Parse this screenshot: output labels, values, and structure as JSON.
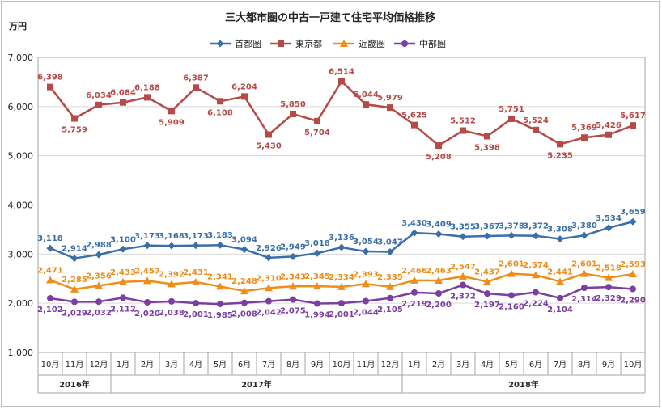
{
  "chart_data": {
    "type": "line",
    "title": "三大都市圏の中古一戸建て住宅平均価格推移",
    "ylabel": "万円",
    "xlabel": "",
    "ylim": [
      1000,
      7000
    ],
    "yticks": [
      "1,000",
      "2,000",
      "3,000",
      "4,000",
      "5,000",
      "6,000",
      "7,000"
    ],
    "categories": [
      "10月",
      "11月",
      "12月",
      "1月",
      "2月",
      "3月",
      "4月",
      "5月",
      "6月",
      "7月",
      "8月",
      "9月",
      "10月",
      "11月",
      "12月",
      "1月",
      "2月",
      "3月",
      "4月",
      "5月",
      "6月",
      "7月",
      "8月",
      "9月",
      "10月"
    ],
    "year_groups": [
      {
        "label": "2016年",
        "start": 0,
        "end": 2
      },
      {
        "label": "2017年",
        "start": 3,
        "end": 14
      },
      {
        "label": "2018年",
        "start": 15,
        "end": 24
      }
    ],
    "legend_position": "top",
    "series": [
      {
        "name": "首都圏",
        "color": "#3a6fa8",
        "marker": "diamond",
        "label_pos": "above",
        "values": [
          3118,
          2914,
          2988,
          3100,
          3173,
          3168,
          3173,
          3183,
          3094,
          2926,
          2949,
          3018,
          3136,
          3054,
          3047,
          3430,
          3409,
          3355,
          3367,
          3378,
          3372,
          3308,
          3380,
          3534,
          3659
        ],
        "labels": [
          "3,118",
          "2,914",
          "2,988",
          "3,100",
          "3,173",
          "3,168",
          "3,173",
          "3,183",
          "3,094",
          "2,926",
          "2,949",
          "3,018",
          "3,136",
          "3,054",
          "3,047",
          "3,430",
          "3,409",
          "3,355",
          "3,367",
          "3,378",
          "3,372",
          "3,308",
          "3,380",
          "3,534",
          "3,659"
        ]
      },
      {
        "name": "東京都",
        "color": "#b54a47",
        "marker": "square",
        "label_pos": "mixed",
        "values": [
          6398,
          5759,
          6034,
          6084,
          6188,
          5909,
          6387,
          6108,
          6204,
          5430,
          5850,
          5704,
          6514,
          6044,
          5979,
          5625,
          5208,
          5512,
          5398,
          5751,
          5524,
          5235,
          5369,
          5426,
          5617
        ],
        "labels": [
          "6,398",
          "5,759",
          "6,034",
          "6,084",
          "6,188",
          "5,909",
          "6,387",
          "6,108",
          "6,204",
          "5,430",
          "5,850",
          "5,704",
          "6,514",
          "6,044",
          "5,979",
          "5,625",
          "5,208",
          "5,512",
          "5,398",
          "5,751",
          "5,524",
          "5,235",
          "5,369",
          "5,426",
          "5,617"
        ]
      },
      {
        "name": "近畿圏",
        "color": "#ee8d1a",
        "marker": "triangle",
        "label_pos": "above",
        "values": [
          2471,
          2285,
          2356,
          2433,
          2457,
          2392,
          2431,
          2341,
          2248,
          2310,
          2343,
          2345,
          2334,
          2393,
          2335,
          2466,
          2463,
          2547,
          2437,
          2601,
          2574,
          2441,
          2601,
          2518,
          2593
        ],
        "labels": [
          "2,471",
          "2,285",
          "2,356",
          "2,433",
          "2,457",
          "2,392",
          "2,431",
          "2,341",
          "2,248",
          "2,310",
          "2,343",
          "2,345",
          "2,334",
          "2,393",
          "2,335",
          "2,466",
          "2,463",
          "2,547",
          "2,437",
          "2,601",
          "2,574",
          "2,441",
          "2,601",
          "2,518",
          "2,593"
        ]
      },
      {
        "name": "中部圏",
        "color": "#7a3fa0",
        "marker": "circle",
        "label_pos": "below",
        "values": [
          2102,
          2029,
          2032,
          2112,
          2020,
          2038,
          2001,
          1985,
          2008,
          2042,
          2075,
          1994,
          2001,
          2044,
          2105,
          2219,
          2200,
          2372,
          2197,
          2160,
          2224,
          2104,
          2314,
          2329,
          2290
        ],
        "labels": [
          "2,102",
          "2,029",
          "2,032",
          "2,112",
          "2,020",
          "2,038",
          "2,001",
          "1,985",
          "2,008",
          "2,042",
          "2,075",
          "1,994",
          "2,001",
          "2,044",
          "2,105",
          "2,219",
          "2,200",
          "2,372",
          "2,197",
          "2,160",
          "2,224",
          "2,104",
          "2,314",
          "2,329",
          "2,290"
        ]
      }
    ]
  }
}
